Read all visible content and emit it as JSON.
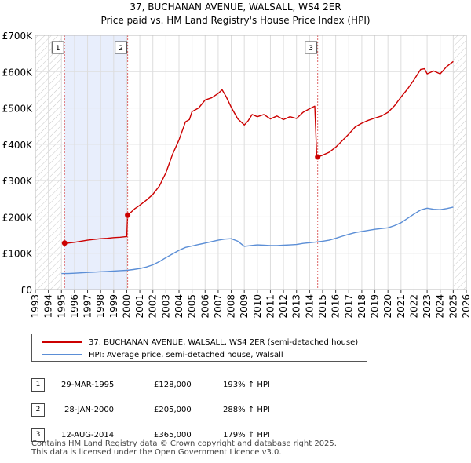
{
  "chart_data": {
    "type": "line",
    "title": "37, BUCHANAN AVENUE, WALSALL, WS4 2ER",
    "subtitle": "Price paid vs. HM Land Registry's House Price Index (HPI)",
    "xlabel": "",
    "ylabel": "",
    "xlim": [
      1993,
      2026
    ],
    "ylim": [
      0,
      700000
    ],
    "x_ticks": [
      "1993",
      "1994",
      "1995",
      "1996",
      "1997",
      "1998",
      "1999",
      "2000",
      "2001",
      "2002",
      "2003",
      "2004",
      "2005",
      "2006",
      "2007",
      "2008",
      "2009",
      "2010",
      "2011",
      "2012",
      "2013",
      "2014",
      "2015",
      "2016",
      "2017",
      "2018",
      "2019",
      "2020",
      "2021",
      "2022",
      "2023",
      "2024",
      "2025",
      "2026"
    ],
    "y_ticks": [
      {
        "value": 0,
        "label": "£0"
      },
      {
        "value": 100000,
        "label": "£100K"
      },
      {
        "value": 200000,
        "label": "£200K"
      },
      {
        "value": 300000,
        "label": "£300K"
      },
      {
        "value": 400000,
        "label": "£400K"
      },
      {
        "value": 500000,
        "label": "£500K"
      },
      {
        "value": 600000,
        "label": "£600K"
      },
      {
        "value": 700000,
        "label": "£700K"
      }
    ],
    "hatched_ranges": [
      [
        1993,
        1995.0
      ],
      [
        2025.0,
        2026
      ]
    ],
    "shaded_ranges": [
      [
        1995.24,
        2000.07
      ]
    ],
    "series": [
      {
        "name": "37, BUCHANAN AVENUE, WALSALL, WS4 2ER (semi-detached house)",
        "color": "#cc0000",
        "x": [
          1995.24,
          1995.5,
          1996,
          1996.5,
          1997,
          1997.5,
          1998,
          1998.5,
          1999,
          1999.5,
          2000.0,
          2000.07,
          2000.3,
          2000.6,
          2001,
          2001.5,
          2002,
          2002.5,
          2003,
          2003.5,
          2004,
          2004.5,
          2004.8,
          2005,
          2005.5,
          2006,
          2006.5,
          2007,
          2007.3,
          2007.6,
          2008,
          2008.5,
          2009,
          2009.3,
          2009.6,
          2010,
          2010.5,
          2011,
          2011.5,
          2012,
          2012.5,
          2013,
          2013.5,
          2014,
          2014.4,
          2014.55,
          2014.62,
          2015,
          2015.5,
          2016,
          2016.5,
          2017,
          2017.5,
          2018,
          2018.5,
          2019,
          2019.5,
          2020,
          2020.5,
          2021,
          2021.5,
          2022,
          2022.5,
          2022.8,
          2023,
          2023.5,
          2024,
          2024.5,
          2025
        ],
        "values": [
          128000,
          128000,
          130000,
          133000,
          136000,
          138000,
          140000,
          141000,
          143000,
          144000,
          146000,
          205000,
          212000,
          222000,
          232000,
          246000,
          262000,
          285000,
          322000,
          372000,
          412000,
          462000,
          468000,
          490000,
          500000,
          522000,
          528000,
          540000,
          550000,
          532000,
          502000,
          470000,
          453000,
          465000,
          482000,
          476000,
          482000,
          470000,
          478000,
          468000,
          476000,
          471000,
          488000,
          498000,
          505000,
          365000,
          365000,
          370000,
          378000,
          392000,
          410000,
          428000,
          448000,
          458000,
          466000,
          472000,
          478000,
          488000,
          506000,
          530000,
          552000,
          578000,
          606000,
          608000,
          594000,
          602000,
          594000,
          614000,
          628000
        ]
      },
      {
        "name": "HPI: Average price, semi-detached house, Walsall",
        "color": "#5b8ed6",
        "x": [
          1995.0,
          1995.5,
          1996,
          1996.5,
          1997,
          1997.5,
          1998,
          1998.5,
          1999,
          1999.5,
          2000,
          2000.5,
          2001,
          2001.5,
          2002,
          2002.5,
          2003,
          2003.5,
          2004,
          2004.5,
          2005,
          2005.5,
          2006,
          2006.5,
          2007,
          2007.5,
          2008,
          2008.5,
          2009,
          2009.5,
          2010,
          2010.5,
          2011,
          2011.5,
          2012,
          2012.5,
          2013,
          2013.5,
          2014,
          2014.5,
          2015,
          2015.5,
          2016,
          2016.5,
          2017,
          2017.5,
          2018,
          2018.5,
          2019,
          2019.5,
          2020,
          2020.5,
          2021,
          2021.5,
          2022,
          2022.5,
          2023,
          2023.5,
          2024,
          2024.5,
          2025
        ],
        "values": [
          44000,
          44000,
          45000,
          46000,
          47000,
          48000,
          49000,
          50000,
          51000,
          52000,
          53000,
          55000,
          58000,
          62000,
          68000,
          77000,
          88000,
          98000,
          108000,
          116000,
          120000,
          124000,
          128000,
          132000,
          136000,
          139000,
          140000,
          133000,
          119000,
          121000,
          123000,
          122000,
          121000,
          121000,
          122000,
          123000,
          124000,
          127000,
          129000,
          131000,
          133000,
          136000,
          141000,
          147000,
          152000,
          157000,
          160000,
          163000,
          166000,
          168000,
          170000,
          176000,
          184000,
          196000,
          208000,
          219000,
          224000,
          221000,
          220000,
          223000,
          227000
        ]
      }
    ],
    "sale_markers": [
      {
        "label": "1",
        "x": 1995.24,
        "value": 128000
      },
      {
        "label": "2",
        "x": 2000.07,
        "value": 205000
      },
      {
        "label": "3",
        "x": 2014.62,
        "value": 365000
      }
    ]
  },
  "legend": {
    "items": [
      {
        "label": "37, BUCHANAN AVENUE, WALSALL, WS4 2ER (semi-detached house)",
        "color": "#cc0000"
      },
      {
        "label": "HPI: Average price, semi-detached house, Walsall",
        "color": "#5b8ed6"
      }
    ]
  },
  "sales_table": {
    "rows": [
      {
        "num": "1",
        "date": "29-MAR-1995",
        "price": "£128,000",
        "hpi": "193% ↑ HPI"
      },
      {
        "num": "2",
        "date": "28-JAN-2000",
        "price": "£205,000",
        "hpi": "288% ↑ HPI"
      },
      {
        "num": "3",
        "date": "12-AUG-2014",
        "price": "£365,000",
        "hpi": "179% ↑ HPI"
      }
    ]
  },
  "footer": {
    "line1": "Contains HM Land Registry data © Crown copyright and database right 2025.",
    "line2": "This data is licensed under the Open Government Licence v3.0."
  }
}
